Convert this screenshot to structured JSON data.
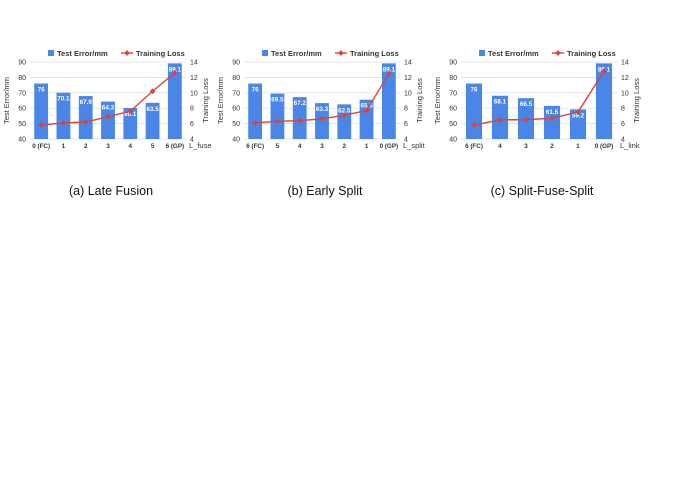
{
  "legend": {
    "bar_label": "Test Error/mm",
    "line_label": "Training Loss"
  },
  "colors": {
    "bar": "#4a86e8",
    "line": "#db4437",
    "grid": "#dcdcdc",
    "text": "#333333"
  },
  "chart_data": [
    {
      "type": "bar",
      "caption": "(a) Late Fusion",
      "xlabel": "L_fuse",
      "ylabel": "Test Error/mm",
      "y2label": "Training Loss",
      "categories": [
        "0 (FC)",
        "1",
        "2",
        "3",
        "4",
        "5",
        "6 (GP)"
      ],
      "ylim": [
        40,
        90
      ],
      "yticks": [
        40,
        50,
        60,
        70,
        80,
        90
      ],
      "y2lim": [
        4,
        14
      ],
      "y2ticks": [
        4,
        6,
        8,
        10,
        12,
        14
      ],
      "grid": true,
      "legend_position": "top",
      "series": [
        {
          "name": "Test Error/mm",
          "kind": "bar",
          "axis": "left",
          "values": [
            76,
            70.1,
            67.9,
            64.3,
            60.1,
            63.5,
            89.1
          ],
          "labels": [
            "76",
            "70.1",
            "67.9",
            "64.3",
            "60.1",
            "63.5",
            "89.1"
          ]
        },
        {
          "name": "Training Loss",
          "kind": "line",
          "axis": "right",
          "values": [
            5.8,
            6.1,
            6.2,
            6.9,
            7.6,
            10.2,
            12.6
          ]
        }
      ]
    },
    {
      "type": "bar",
      "caption": "(b) Early Split",
      "xlabel": "L_split",
      "ylabel": "Test Error/mm",
      "y2label": "Training Loss",
      "categories": [
        "6 (FC)",
        "5",
        "4",
        "3",
        "2",
        "1",
        "0 (GP)"
      ],
      "ylim": [
        40,
        90
      ],
      "yticks": [
        40,
        50,
        60,
        70,
        80,
        90
      ],
      "y2lim": [
        4,
        14
      ],
      "y2ticks": [
        4,
        6,
        8,
        10,
        12,
        14
      ],
      "grid": true,
      "legend_position": "top",
      "series": [
        {
          "name": "Test Error/mm",
          "kind": "bar",
          "axis": "left",
          "values": [
            76,
            69.5,
            67.2,
            63.3,
            62.5,
            65.5,
            89.1
          ],
          "labels": [
            "76",
            "69.5",
            "67.2",
            "63.3",
            "62.5",
            "65.5",
            "89.1"
          ]
        },
        {
          "name": "Training Loss",
          "kind": "line",
          "axis": "right",
          "values": [
            6.1,
            6.3,
            6.4,
            6.6,
            7.1,
            7.7,
            12.5
          ]
        }
      ]
    },
    {
      "type": "bar",
      "caption": "(c) Split-Fuse-Split",
      "xlabel": "L_link",
      "ylabel": "Test Error/mm",
      "y2label": "Training Loss",
      "categories": [
        "6 (FC)",
        "4",
        "3",
        "2",
        "1",
        "0 (GP)"
      ],
      "ylim": [
        40,
        90
      ],
      "yticks": [
        40,
        50,
        60,
        70,
        80,
        90
      ],
      "y2lim": [
        4,
        14
      ],
      "y2ticks": [
        4,
        6,
        8,
        10,
        12,
        14
      ],
      "grid": true,
      "legend_position": "top",
      "series": [
        {
          "name": "Test Error/mm",
          "kind": "bar",
          "axis": "left",
          "values": [
            76,
            68.1,
            66.5,
            61.5,
            59.2,
            89.1
          ],
          "labels": [
            "76",
            "68.1",
            "66.5",
            "61.5",
            "59.2",
            "89.1"
          ]
        },
        {
          "name": "Training Loss",
          "kind": "line",
          "axis": "right",
          "values": [
            5.8,
            6.5,
            6.5,
            6.7,
            7.5,
            12.8
          ]
        }
      ]
    }
  ]
}
